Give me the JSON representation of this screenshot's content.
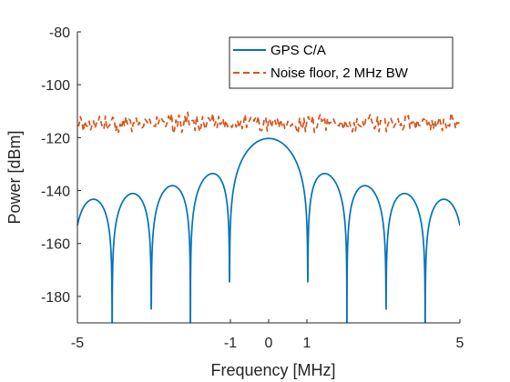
{
  "chart_data": {
    "type": "line",
    "xlabel": "Frequency  [MHz]",
    "ylabel": "Power  [dBm]",
    "xlim": [
      -5,
      5
    ],
    "ylim": [
      -190,
      -80
    ],
    "x_ticks": [
      -5,
      -1,
      0,
      1,
      5
    ],
    "y_ticks": [
      -80,
      -100,
      -120,
      -140,
      -160,
      -180
    ],
    "grid": false,
    "legend_position": "top-right",
    "series": [
      {
        "name": "GPS C/A",
        "color": "#0072BD",
        "style": "solid",
        "function": "sinc-squared",
        "peak_dbm": -120.3,
        "null_spacing_mhz": 1.023
      },
      {
        "name": "Noise floor, 2 MHz BW",
        "color": "#D95319",
        "style": "dashed",
        "function": "noise",
        "mean_dbm": -114.5,
        "spread_db": 1.8
      }
    ]
  }
}
